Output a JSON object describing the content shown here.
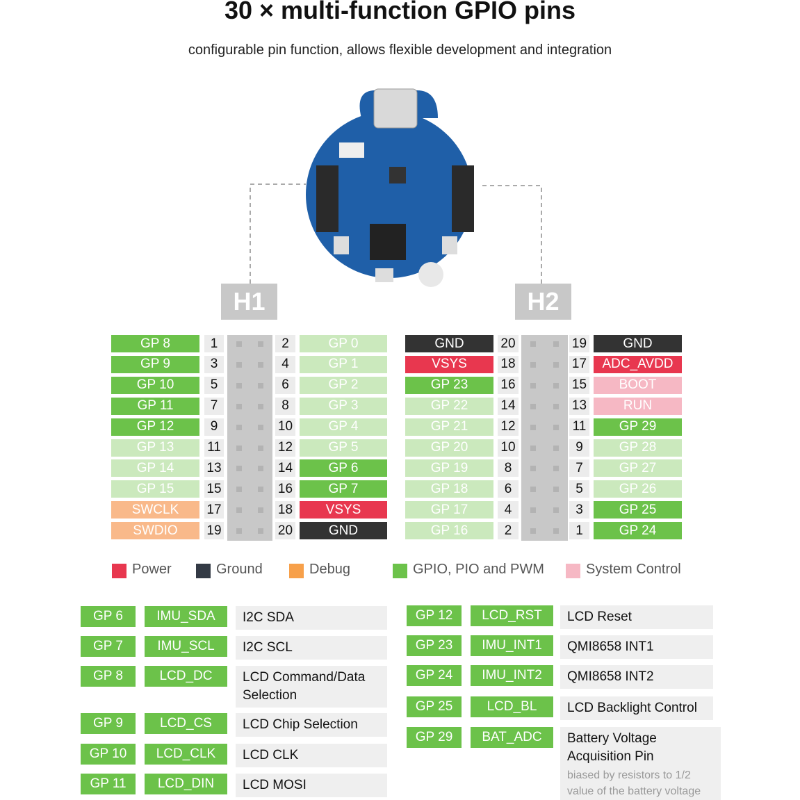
{
  "title": "30 × multi-function GPIO pins",
  "subtitle": "configurable pin function, allows flexible development and integration",
  "headers": [
    {
      "label": "H1",
      "rows": [
        {
          "left": {
            "text": "GP 8",
            "color": "#6cc24a"
          },
          "left_pin": 1,
          "right_pin": 2,
          "right": {
            "text": "GP 0",
            "color": "#cbe9bd"
          }
        },
        {
          "left": {
            "text": "GP 9",
            "color": "#6cc24a"
          },
          "left_pin": 3,
          "right_pin": 4,
          "right": {
            "text": "GP 1",
            "color": "#cbe9bd"
          }
        },
        {
          "left": {
            "text": "GP 10",
            "color": "#6cc24a"
          },
          "left_pin": 5,
          "right_pin": 6,
          "right": {
            "text": "GP 2",
            "color": "#cbe9bd"
          }
        },
        {
          "left": {
            "text": "GP 11",
            "color": "#6cc24a"
          },
          "left_pin": 7,
          "right_pin": 8,
          "right": {
            "text": "GP 3",
            "color": "#cbe9bd"
          }
        },
        {
          "left": {
            "text": "GP 12",
            "color": "#6cc24a"
          },
          "left_pin": 9,
          "right_pin": 10,
          "right": {
            "text": "GP 4",
            "color": "#cbe9bd"
          }
        },
        {
          "left": {
            "text": "GP 13",
            "color": "#cbe9bd"
          },
          "left_pin": 11,
          "right_pin": 12,
          "right": {
            "text": "GP 5",
            "color": "#cbe9bd"
          }
        },
        {
          "left": {
            "text": "GP 14",
            "color": "#cbe9bd"
          },
          "left_pin": 13,
          "right_pin": 14,
          "right": {
            "text": "GP 6",
            "color": "#6cc24a"
          }
        },
        {
          "left": {
            "text": "GP 15",
            "color": "#cbe9bd"
          },
          "left_pin": 15,
          "right_pin": 16,
          "right": {
            "text": "GP 7",
            "color": "#6cc24a"
          }
        },
        {
          "left": {
            "text": "SWCLK",
            "color": "#f9b98a"
          },
          "left_pin": 17,
          "right_pin": 18,
          "right": {
            "text": "VSYS",
            "color": "#e8374f"
          }
        },
        {
          "left": {
            "text": "SWDIO",
            "color": "#f9b98a"
          },
          "left_pin": 19,
          "right_pin": 20,
          "right": {
            "text": "GND",
            "color": "#333333"
          }
        }
      ]
    },
    {
      "label": "H2",
      "rows": [
        {
          "left": {
            "text": "GND",
            "color": "#333333"
          },
          "left_pin": 20,
          "right_pin": 19,
          "right": {
            "text": "GND",
            "color": "#333333"
          }
        },
        {
          "left": {
            "text": "VSYS",
            "color": "#e8374f"
          },
          "left_pin": 18,
          "right_pin": 17,
          "right": {
            "text": "ADC_AVDD",
            "color": "#e8374f"
          }
        },
        {
          "left": {
            "text": "GP 23",
            "color": "#6cc24a"
          },
          "left_pin": 16,
          "right_pin": 15,
          "right": {
            "text": "BOOT",
            "color": "#f6b8c4"
          }
        },
        {
          "left": {
            "text": "GP 22",
            "color": "#cbe9bd"
          },
          "left_pin": 14,
          "right_pin": 13,
          "right": {
            "text": "RUN",
            "color": "#f6b8c4"
          }
        },
        {
          "left": {
            "text": "GP 21",
            "color": "#cbe9bd"
          },
          "left_pin": 12,
          "right_pin": 11,
          "right": {
            "text": "GP 29",
            "color": "#6cc24a"
          }
        },
        {
          "left": {
            "text": "GP 20",
            "color": "#cbe9bd"
          },
          "left_pin": 10,
          "right_pin": 9,
          "right": {
            "text": "GP 28",
            "color": "#cbe9bd"
          }
        },
        {
          "left": {
            "text": "GP 19",
            "color": "#cbe9bd"
          },
          "left_pin": 8,
          "right_pin": 7,
          "right": {
            "text": "GP 27",
            "color": "#cbe9bd"
          }
        },
        {
          "left": {
            "text": "GP 18",
            "color": "#cbe9bd"
          },
          "left_pin": 6,
          "right_pin": 5,
          "right": {
            "text": "GP 26",
            "color": "#cbe9bd"
          }
        },
        {
          "left": {
            "text": "GP 17",
            "color": "#cbe9bd"
          },
          "left_pin": 4,
          "right_pin": 3,
          "right": {
            "text": "GP 25",
            "color": "#6cc24a"
          }
        },
        {
          "left": {
            "text": "GP 16",
            "color": "#cbe9bd"
          },
          "left_pin": 2,
          "right_pin": 1,
          "right": {
            "text": "GP 24",
            "color": "#6cc24a"
          }
        }
      ]
    }
  ],
  "legend": [
    {
      "name": "Power",
      "color": "#e8374f"
    },
    {
      "name": "Ground",
      "color": "#333a45"
    },
    {
      "name": "Debug",
      "color": "#f7a04a"
    },
    {
      "name": "GPIO, PIO and PWM",
      "color": "#6cc24a"
    },
    {
      "name": "System Control",
      "color": "#f6b8c4"
    }
  ],
  "functions": [
    [
      {
        "gpio": "GP 6",
        "signal": "IMU_SDA",
        "description": "I2C SDA"
      },
      {
        "gpio": "GP 7",
        "signal": "IMU_SCL",
        "description": "I2C SCL"
      },
      {
        "gpio": "GP 8",
        "signal": "LCD_DC",
        "description": "LCD Command/Data Selection"
      },
      {
        "gpio": "GP 9",
        "signal": "LCD_CS",
        "description": "LCD Chip Selection"
      },
      {
        "gpio": "GP 10",
        "signal": "LCD_CLK",
        "description": "LCD CLK"
      },
      {
        "gpio": "GP 11",
        "signal": "LCD_DIN",
        "description": "LCD MOSI"
      }
    ],
    [
      {
        "gpio": "GP 12",
        "signal": "LCD_RST",
        "description": "LCD Reset"
      },
      {
        "gpio": "GP 23",
        "signal": "IMU_INT1",
        "description": "QMI8658 INT1"
      },
      {
        "gpio": "GP 24",
        "signal": "IMU_INT2",
        "description": "QMI8658 INT2"
      },
      {
        "gpio": "GP 25",
        "signal": "LCD_BL",
        "description": "LCD Backlight Control"
      },
      {
        "gpio": "GP 29",
        "signal": "BAT_ADC",
        "description": "Battery Voltage Acquisition Pin",
        "note": "biased by resistors to 1/2 value of the battery voltage"
      }
    ]
  ]
}
